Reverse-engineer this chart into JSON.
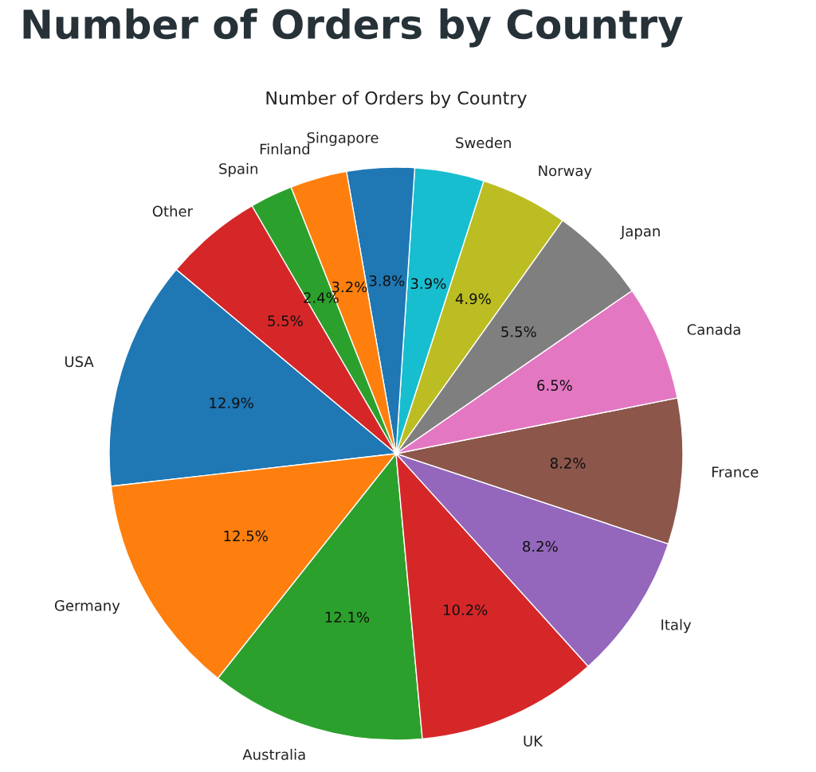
{
  "chart_data": {
    "type": "pie",
    "title": "Number of Orders by Country",
    "subtitle": "Number of Orders by Country",
    "categories": [
      "USA",
      "Germany",
      "Australia",
      "UK",
      "Italy",
      "France",
      "Canada",
      "Japan",
      "Norway",
      "Sweden",
      "Singapore",
      "Finland",
      "Spain",
      "Other"
    ],
    "values": [
      12.9,
      12.5,
      12.1,
      10.2,
      8.2,
      8.2,
      6.5,
      5.5,
      4.9,
      3.9,
      3.8,
      3.2,
      2.4,
      5.5
    ],
    "value_labels": [
      "12.9%",
      "12.5%",
      "12.1%",
      "10.2%",
      "8.2%",
      "8.2%",
      "6.5%",
      "5.5%",
      "4.9%",
      "3.9%",
      "3.8%",
      "3.2%",
      "2.4%",
      "5.5%"
    ],
    "colors": [
      "#1f77b4",
      "#ff7f0e",
      "#2ca02c",
      "#d62728",
      "#9467bd",
      "#8c564b",
      "#e377c2",
      "#7f7f7f",
      "#bcbd22",
      "#17becf",
      "#1f77b4",
      "#ff7f0e",
      "#2ca02c",
      "#d62728"
    ]
  }
}
